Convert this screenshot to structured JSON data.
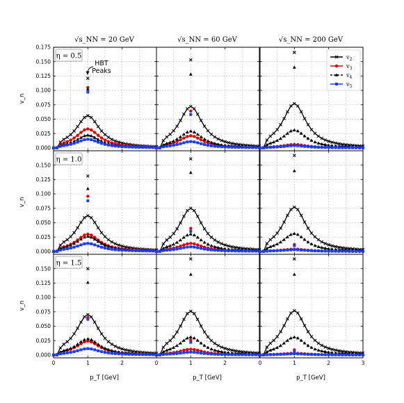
{
  "figure": {
    "column_titles": [
      "√s_NN = 20 GeV",
      "√s_NN = 60 GeV",
      "√s_NN = 200 GeV"
    ],
    "row_labels": [
      "η = 0.5",
      "η = 1.0",
      "η = 1.5"
    ],
    "ylabel": "v_n",
    "xlabel": "p_T [GeV]",
    "annotation": [
      "HBT",
      "Peaks"
    ]
  },
  "chart_data": {
    "type": "line",
    "layout": "3x3 grid, shared axes",
    "xlim": [
      0,
      3
    ],
    "ylim": [
      -0.005,
      0.175
    ],
    "x_ticks": [
      0,
      1,
      2,
      3
    ],
    "y_ticks": [
      0.0,
      0.025,
      0.05,
      0.075,
      0.1,
      0.125,
      0.15,
      0.175
    ],
    "y_tick_labels": [
      "0.000",
      "0.025",
      "0.050",
      "0.075",
      "0.100",
      "0.125",
      "0.150",
      "0.175"
    ],
    "grid": true,
    "legend_placement": "top-right of top-right panel",
    "series_styles": [
      {
        "name": "v2",
        "color": "#000000",
        "marker": "x"
      },
      {
        "name": "v3",
        "color": "#e00000",
        "marker": "o"
      },
      {
        "name": "v4",
        "color": "#000000",
        "marker": "^",
        "dashed": true
      },
      {
        "name": "v5",
        "color": "#1a3cff",
        "marker": "s"
      }
    ],
    "peak_x": 1.0,
    "panels": [
      {
        "row": 0,
        "col": 0,
        "amps": [
          0.056,
          0.033,
          0.022,
          0.015
        ],
        "spike": [
          0.121,
          0.105,
          0.102,
          0.097
        ]
      },
      {
        "row": 0,
        "col": 1,
        "amps": [
          0.072,
          0.021,
          0.029,
          0.011
        ],
        "spike": [
          0.153,
          0.064,
          0.128,
          0.058
        ]
      },
      {
        "row": 0,
        "col": 2,
        "amps": [
          0.077,
          0.006,
          0.031,
          0.004
        ],
        "spike": [
          0.166,
          null,
          0.14,
          null
        ]
      },
      {
        "row": 1,
        "col": 0,
        "amps": [
          0.062,
          0.03,
          0.026,
          0.014
        ],
        "spike": [
          0.131,
          0.096,
          0.109,
          0.088
        ]
      },
      {
        "row": 1,
        "col": 1,
        "amps": [
          0.075,
          0.014,
          0.03,
          0.008
        ],
        "spike": [
          0.161,
          0.04,
          0.137,
          0.035
        ]
      },
      {
        "row": 1,
        "col": 2,
        "amps": [
          0.077,
          0.004,
          0.031,
          0.003
        ],
        "spike": [
          0.167,
          0.012,
          0.14,
          0.01
        ]
      },
      {
        "row": 2,
        "col": 0,
        "amps": [
          0.07,
          0.024,
          0.028,
          0.011
        ],
        "spike": [
          0.15,
          0.065,
          0.126,
          0.062
        ]
      },
      {
        "row": 2,
        "col": 1,
        "amps": [
          0.076,
          0.01,
          0.031,
          0.005
        ],
        "spike": [
          0.167,
          0.026,
          0.14,
          0.022
        ]
      },
      {
        "row": 2,
        "col": 2,
        "amps": [
          0.077,
          0.003,
          0.031,
          0.002
        ],
        "spike": [
          0.167,
          0.009,
          0.14,
          0.006
        ]
      }
    ]
  }
}
